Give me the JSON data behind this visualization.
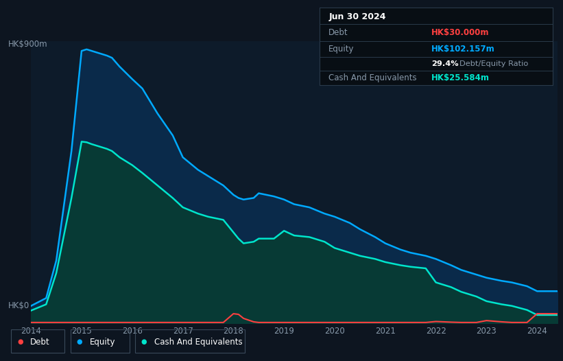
{
  "bg_color": "#0d1520",
  "plot_bg_color": "#0d1b2a",
  "grid_color": "#1e2d3d",
  "title_box": {
    "date": "Jun 30 2024",
    "debt_label": "Debt",
    "debt_value": "HK$30.000m",
    "equity_label": "Equity",
    "equity_value": "HK$102.157m",
    "ratio_value": "29.4%",
    "ratio_label": "Debt/Equity Ratio",
    "cash_label": "Cash And Equivalents",
    "cash_value": "HK$25.584m"
  },
  "ylabel": "HK$900m",
  "y0_label": "HK$0",
  "debt_color": "#ff4040",
  "equity_color": "#00aaff",
  "cash_color": "#00e5cc",
  "equity_fill_color": "#0a2a4a",
  "cash_fill_color": "#073a35",
  "years": [
    2014.0,
    2014.3,
    2014.5,
    2014.8,
    2015.0,
    2015.1,
    2015.2,
    2015.4,
    2015.5,
    2015.6,
    2015.75,
    2016.0,
    2016.2,
    2016.5,
    2016.8,
    2017.0,
    2017.3,
    2017.5,
    2017.8,
    2018.0,
    2018.1,
    2018.2,
    2018.4,
    2018.5,
    2018.8,
    2019.0,
    2019.2,
    2019.5,
    2019.8,
    2020.0,
    2020.3,
    2020.5,
    2020.8,
    2021.0,
    2021.3,
    2021.5,
    2021.8,
    2022.0,
    2022.3,
    2022.5,
    2022.8,
    2023.0,
    2023.3,
    2023.5,
    2023.8,
    2024.0,
    2024.4
  ],
  "equity": [
    55,
    80,
    200,
    550,
    870,
    875,
    870,
    860,
    855,
    848,
    820,
    780,
    750,
    670,
    600,
    530,
    490,
    470,
    440,
    410,
    400,
    395,
    400,
    415,
    405,
    395,
    380,
    370,
    350,
    340,
    320,
    300,
    275,
    255,
    235,
    225,
    215,
    205,
    185,
    170,
    155,
    145,
    135,
    130,
    118,
    102,
    102
  ],
  "cash": [
    40,
    60,
    160,
    400,
    580,
    578,
    572,
    562,
    557,
    550,
    530,
    505,
    480,
    440,
    400,
    370,
    350,
    340,
    330,
    290,
    270,
    255,
    260,
    270,
    270,
    295,
    280,
    275,
    260,
    240,
    225,
    215,
    205,
    195,
    185,
    180,
    175,
    130,
    115,
    100,
    85,
    70,
    60,
    55,
    42,
    26,
    26
  ],
  "debt": [
    2,
    2,
    2,
    2,
    2,
    2,
    2,
    2,
    2,
    2,
    2,
    2,
    2,
    2,
    2,
    2,
    2,
    2,
    2,
    30,
    28,
    15,
    4,
    2,
    2,
    2,
    2,
    2,
    2,
    2,
    2,
    2,
    2,
    2,
    2,
    2,
    2,
    5,
    3,
    2,
    2,
    8,
    4,
    2,
    2,
    30,
    30
  ],
  "xticks": [
    2014,
    2015,
    2016,
    2017,
    2018,
    2019,
    2020,
    2021,
    2022,
    2023,
    2024
  ],
  "ylim": [
    0,
    900
  ],
  "legend_labels": [
    "Debt",
    "Equity",
    "Cash And Equivalents"
  ]
}
